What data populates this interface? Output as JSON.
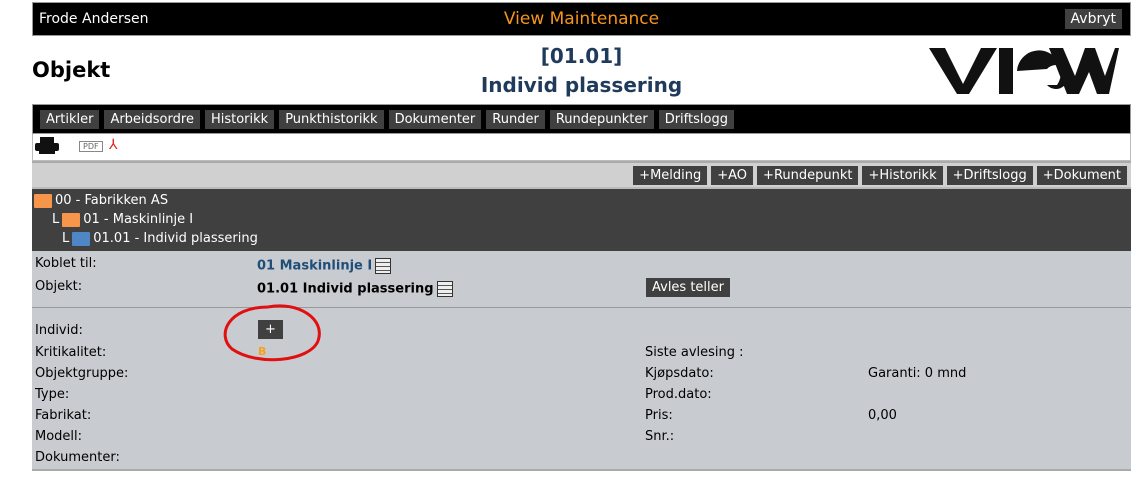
{
  "topbar": {
    "user": "Frode Andersen",
    "title": "View Maintenance",
    "cancel": "Avbryt"
  },
  "header": {
    "page_title": "Objekt",
    "code": "[01.01]",
    "name": "Individ plassering",
    "logo": "VIEW"
  },
  "nav": [
    "Artikler",
    "Arbeidsordre",
    "Historikk",
    "Punkthistorikk",
    "Dokumenter",
    "Runder",
    "Rundepunkter",
    "Driftslogg"
  ],
  "icons": {
    "print": "printer-icon",
    "pdf": "PDF"
  },
  "actions": [
    "+Melding",
    "+AO",
    "+Rundepunkt",
    "+Historikk",
    "+Driftslogg",
    "+Dokument"
  ],
  "tree": [
    {
      "prefix": "",
      "label": "00 - Fabrikken AS",
      "color": "#f7964a"
    },
    {
      "prefix": "L",
      "label": "01 - Maskinlinje I",
      "color": "#f7964a"
    },
    {
      "prefix": "L",
      "label": "01.01 - Individ plassering",
      "color": "#4f86c6"
    }
  ],
  "form": {
    "koblet_label": "Koblet til:",
    "koblet_value": "01 Maskinlinje I",
    "objekt_label": "Objekt:",
    "objekt_value": "01.01 Individ plassering",
    "avles": "Avles teller",
    "individ_label": "Individ:",
    "add": "+",
    "krit_label": "Kritikalitet:",
    "krit_value": "B",
    "gruppe_label": "Objektgruppe:",
    "type_label": "Type:",
    "fabrikat_label": "Fabrikat:",
    "modell_label": "Modell:",
    "dok_label": "Dokumenter:",
    "siste_label": "Siste avlesing :",
    "kjops_label": "Kjøpsdato:",
    "garanti": "Garanti: 0 mnd",
    "prod_label": "Prod.dato:",
    "pris_label": "Pris:",
    "pris_value": "0,00",
    "snr_label": "Snr.:"
  }
}
